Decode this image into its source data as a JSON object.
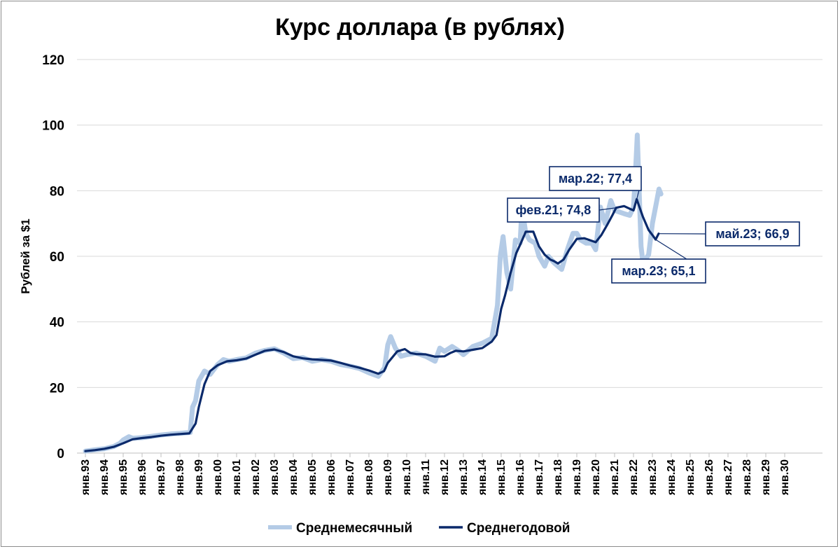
{
  "chart_data": {
    "type": "line",
    "title": "Курс доллара (в рублях)",
    "ylabel": "Рублей за $1",
    "xlabel": "",
    "ylim": [
      0,
      120
    ],
    "yticks": [
      0,
      20,
      40,
      60,
      80,
      100,
      120
    ],
    "grid": "horizontal",
    "legend_position": "bottom",
    "x_start_year": 1993,
    "x_end_year": 2030,
    "categories": [
      "янв.93",
      "янв.94",
      "янв.95",
      "янв.96",
      "янв.97",
      "янв.98",
      "янв.99",
      "янв.00",
      "янв.01",
      "янв.02",
      "янв.03",
      "янв.04",
      "янв.05",
      "янв.06",
      "янв.07",
      "янв.08",
      "янв.09",
      "янв.10",
      "янв.11",
      "янв.12",
      "янв.13",
      "янв.14",
      "янв.15",
      "янв.16",
      "янв.17",
      "янв.18",
      "янв.19",
      "янв.20",
      "янв.21",
      "янв.22",
      "янв.23",
      "янв.24",
      "янв.25",
      "янв.26",
      "янв.27",
      "янв.28",
      "янв.29",
      "янв.30"
    ],
    "series": [
      {
        "name": "Среднемесячный",
        "color": "#b4cbe6",
        "points": [
          [
            1993.0,
            0.6
          ],
          [
            1993.5,
            1.0
          ],
          [
            1994.0,
            1.3
          ],
          [
            1994.5,
            2.0
          ],
          [
            1994.83,
            3.0
          ],
          [
            1995.0,
            4.0
          ],
          [
            1995.3,
            5.0
          ],
          [
            1995.5,
            4.5
          ],
          [
            1996.0,
            4.7
          ],
          [
            1996.5,
            5.1
          ],
          [
            1997.0,
            5.5
          ],
          [
            1997.5,
            5.8
          ],
          [
            1998.0,
            6.0
          ],
          [
            1998.55,
            6.3
          ],
          [
            1998.67,
            14.0
          ],
          [
            1998.83,
            16.0
          ],
          [
            1999.0,
            22.0
          ],
          [
            1999.3,
            25.0
          ],
          [
            1999.6,
            24.0
          ],
          [
            2000.0,
            27.0
          ],
          [
            2000.3,
            28.5
          ],
          [
            2000.6,
            28.0
          ],
          [
            2001.0,
            28.5
          ],
          [
            2001.5,
            29.0
          ],
          [
            2002.0,
            30.5
          ],
          [
            2002.5,
            31.3
          ],
          [
            2003.0,
            31.8
          ],
          [
            2003.5,
            30.5
          ],
          [
            2004.0,
            28.8
          ],
          [
            2004.5,
            29.1
          ],
          [
            2005.0,
            28.0
          ],
          [
            2005.5,
            28.5
          ],
          [
            2006.0,
            28.0
          ],
          [
            2006.5,
            27.0
          ],
          [
            2007.0,
            26.5
          ],
          [
            2007.5,
            25.8
          ],
          [
            2008.0,
            24.5
          ],
          [
            2008.5,
            23.4
          ],
          [
            2008.83,
            26.0
          ],
          [
            2009.0,
            33.0
          ],
          [
            2009.15,
            35.5
          ],
          [
            2009.4,
            32.0
          ],
          [
            2009.7,
            29.5
          ],
          [
            2010.0,
            30.0
          ],
          [
            2010.5,
            30.5
          ],
          [
            2011.0,
            29.5
          ],
          [
            2011.5,
            28.0
          ],
          [
            2011.75,
            32.0
          ],
          [
            2012.0,
            31.0
          ],
          [
            2012.4,
            32.5
          ],
          [
            2012.8,
            31.0
          ],
          [
            2013.0,
            30.0
          ],
          [
            2013.5,
            32.5
          ],
          [
            2014.0,
            33.5
          ],
          [
            2014.5,
            35.0
          ],
          [
            2014.8,
            45.0
          ],
          [
            2014.95,
            60.0
          ],
          [
            2015.1,
            66.0
          ],
          [
            2015.3,
            55.0
          ],
          [
            2015.5,
            50.0
          ],
          [
            2015.75,
            65.0
          ],
          [
            2016.0,
            64.0
          ],
          [
            2016.1,
            75.0
          ],
          [
            2016.3,
            67.0
          ],
          [
            2016.5,
            65.0
          ],
          [
            2016.8,
            64.0
          ],
          [
            2017.0,
            60.0
          ],
          [
            2017.3,
            57.0
          ],
          [
            2017.5,
            60.0
          ],
          [
            2017.8,
            58.0
          ],
          [
            2018.0,
            57.0
          ],
          [
            2018.2,
            56.0
          ],
          [
            2018.5,
            62.0
          ],
          [
            2018.8,
            67.0
          ],
          [
            2019.0,
            67.0
          ],
          [
            2019.2,
            65.0
          ],
          [
            2019.5,
            64.0
          ],
          [
            2019.8,
            64.0
          ],
          [
            2020.0,
            62.0
          ],
          [
            2020.25,
            75.0
          ],
          [
            2020.5,
            70.0
          ],
          [
            2020.8,
            77.0
          ],
          [
            2021.0,
            74.0
          ],
          [
            2021.5,
            73.0
          ],
          [
            2021.8,
            72.5
          ],
          [
            2022.0,
            75.0
          ],
          [
            2022.1,
            85.0
          ],
          [
            2022.2,
            97.0
          ],
          [
            2022.3,
            80.0
          ],
          [
            2022.4,
            63.0
          ],
          [
            2022.5,
            58.0
          ],
          [
            2022.8,
            60.5
          ],
          [
            2023.0,
            70.0
          ],
          [
            2023.2,
            76.0
          ],
          [
            2023.35,
            80.5
          ],
          [
            2023.45,
            79.0
          ]
        ]
      },
      {
        "name": "Среднегодовой",
        "color": "#0b2a6b",
        "points": [
          [
            1993.0,
            0.6
          ],
          [
            1993.5,
            0.9
          ],
          [
            1994.0,
            1.3
          ],
          [
            1994.5,
            1.9
          ],
          [
            1995.0,
            3.0
          ],
          [
            1995.5,
            4.2
          ],
          [
            1996.0,
            4.6
          ],
          [
            1996.5,
            4.9
          ],
          [
            1997.0,
            5.3
          ],
          [
            1997.5,
            5.6
          ],
          [
            1998.0,
            5.8
          ],
          [
            1998.5,
            6.0
          ],
          [
            1998.83,
            9.0
          ],
          [
            1999.0,
            14.0
          ],
          [
            1999.3,
            21.0
          ],
          [
            1999.6,
            25.0
          ],
          [
            2000.0,
            26.8
          ],
          [
            2000.5,
            28.0
          ],
          [
            2001.0,
            28.3
          ],
          [
            2001.5,
            28.8
          ],
          [
            2002.0,
            30.0
          ],
          [
            2002.5,
            31.2
          ],
          [
            2003.0,
            31.6
          ],
          [
            2003.5,
            30.8
          ],
          [
            2004.0,
            29.5
          ],
          [
            2004.5,
            28.9
          ],
          [
            2005.0,
            28.6
          ],
          [
            2005.5,
            28.4
          ],
          [
            2006.0,
            28.2
          ],
          [
            2006.5,
            27.5
          ],
          [
            2007.0,
            26.7
          ],
          [
            2007.5,
            26.0
          ],
          [
            2008.0,
            25.2
          ],
          [
            2008.5,
            24.2
          ],
          [
            2008.8,
            25.0
          ],
          [
            2009.0,
            27.5
          ],
          [
            2009.5,
            31.0
          ],
          [
            2009.9,
            31.7
          ],
          [
            2010.2,
            30.5
          ],
          [
            2010.5,
            30.2
          ],
          [
            2011.0,
            30.1
          ],
          [
            2011.5,
            29.4
          ],
          [
            2012.0,
            29.5
          ],
          [
            2012.3,
            30.5
          ],
          [
            2012.6,
            31.2
          ],
          [
            2013.0,
            31.0
          ],
          [
            2013.5,
            31.5
          ],
          [
            2014.0,
            32.0
          ],
          [
            2014.5,
            34.0
          ],
          [
            2014.75,
            36.0
          ],
          [
            2015.0,
            44.0
          ],
          [
            2015.2,
            48.0
          ],
          [
            2015.5,
            55.0
          ],
          [
            2015.8,
            61.0
          ],
          [
            2016.0,
            63.5
          ],
          [
            2016.3,
            67.5
          ],
          [
            2016.7,
            67.5
          ],
          [
            2017.0,
            63.0
          ],
          [
            2017.3,
            60.5
          ],
          [
            2017.6,
            59.0
          ],
          [
            2017.8,
            58.5
          ],
          [
            2018.0,
            57.8
          ],
          [
            2018.3,
            59.0
          ],
          [
            2018.6,
            62.0
          ],
          [
            2019.0,
            65.3
          ],
          [
            2019.4,
            65.5
          ],
          [
            2019.8,
            64.7
          ],
          [
            2020.0,
            64.3
          ],
          [
            2020.3,
            66.5
          ],
          [
            2020.6,
            69.5
          ],
          [
            2020.9,
            72.7
          ],
          [
            2021.08,
            74.8
          ],
          [
            2021.5,
            75.3
          ],
          [
            2021.8,
            74.5
          ],
          [
            2022.0,
            74.0
          ],
          [
            2022.17,
            77.4
          ],
          [
            2022.5,
            72.0
          ],
          [
            2022.8,
            68.0
          ],
          [
            2023.0,
            66.5
          ],
          [
            2023.17,
            65.1
          ],
          [
            2023.33,
            66.9
          ]
        ]
      }
    ],
    "annotations": [
      {
        "text": "мар.22; 77,4",
        "x": 2022.17,
        "y": 77.4
      },
      {
        "text": "фев.21; 74,8",
        "x": 2021.08,
        "y": 74.8
      },
      {
        "text": "май.23; 66,9",
        "x": 2023.33,
        "y": 66.9
      },
      {
        "text": "мар.23; 65,1",
        "x": 2023.17,
        "y": 65.1
      }
    ]
  }
}
